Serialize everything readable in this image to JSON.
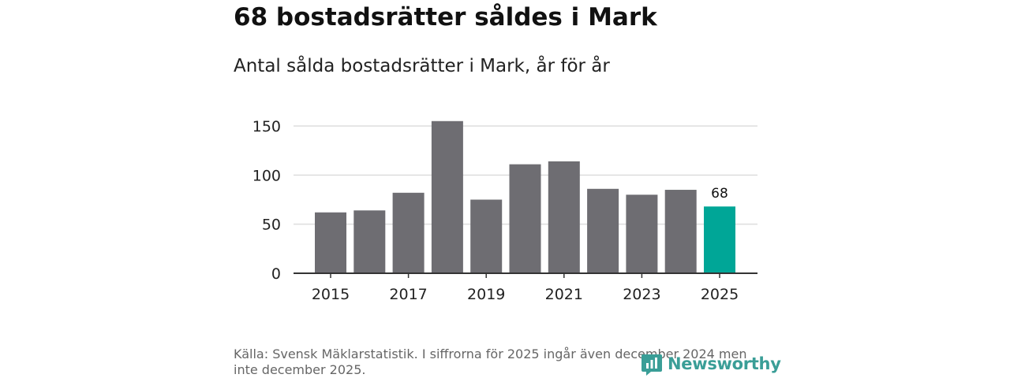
{
  "headline": "68 bostadsrätter såldes i Mark",
  "subtitle": "Antal sålda bostadsrätter i Mark, år för år",
  "source": "Källa: Svensk Mäklarstatistik. I siffrorna för 2025 ingår även december 2024 men inte december 2025.",
  "logo": {
    "name": "Newsworthy",
    "icon": "newsworthy-logo-icon"
  },
  "colors": {
    "bar": "#6e6d72",
    "highlight": "#00a697",
    "grid": "#dddddd",
    "axis": "#333333",
    "text": "#222222"
  },
  "chart_data": {
    "type": "bar",
    "title": "Antal sålda bostadsrätter i Mark, år för år",
    "xlabel": "",
    "ylabel": "",
    "categories": [
      "2015",
      "2016",
      "2017",
      "2018",
      "2019",
      "2020",
      "2021",
      "2022",
      "2023",
      "2024",
      "2025"
    ],
    "values": [
      62,
      64,
      82,
      155,
      75,
      111,
      114,
      86,
      80,
      85,
      68
    ],
    "highlight_index": 10,
    "highlight_label": "68",
    "ylim": [
      0,
      160
    ],
    "yticks": [
      0,
      50,
      100,
      150
    ],
    "xtick_labels": [
      "2015",
      "2017",
      "2019",
      "2021",
      "2023",
      "2025"
    ],
    "grid": true,
    "legend": "none"
  }
}
